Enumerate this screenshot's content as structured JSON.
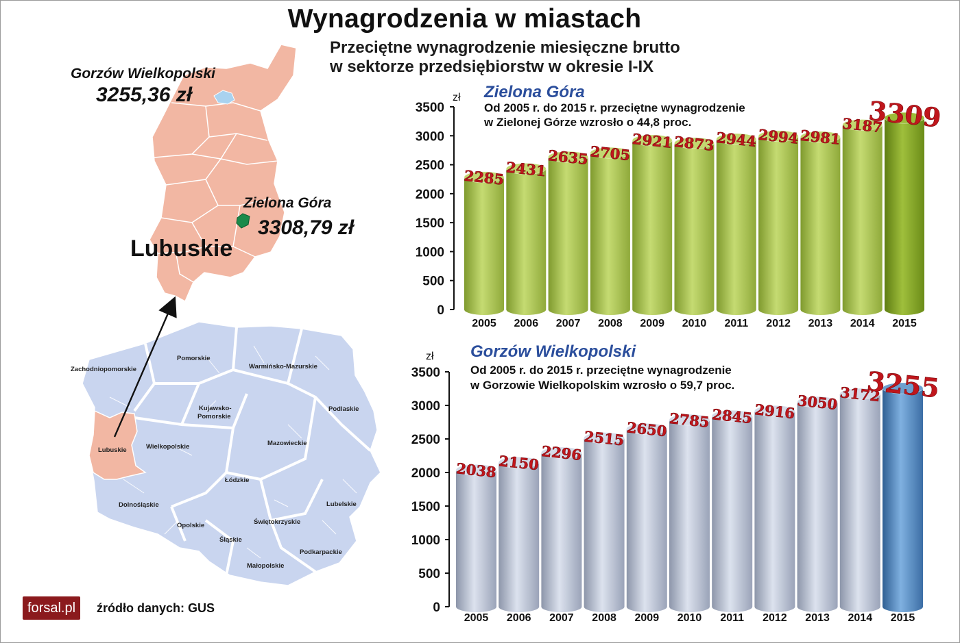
{
  "title": "Wynagrodzenia w miastach",
  "subtitle_lines": [
    "Przeciętne wynagrodzenie miesięczne brutto",
    "w sektorze przedsiębiorstw w okresie I-IX"
  ],
  "map": {
    "region_name": "Lubuskie",
    "cities": [
      {
        "name": "Gorzów Wielkopolski",
        "value": "3255,36 zł"
      },
      {
        "name": "Zielona Góra",
        "value": "3308,79 zł"
      }
    ],
    "voivodeships": [
      "Zachodniopomorskie",
      "Pomorskie",
      "Warmińsko-Mazurskie",
      "Kujawsko-",
      "Pomorskie",
      "Podlaskie",
      "Lubuskie",
      "Wielkopolskie",
      "Mazowieckie",
      "Łódzkie",
      "Dolnośląskie",
      "Lubelskie",
      "Opolskie",
      "Świętokrzyskie",
      "Śląskie",
      "Podkarpackie",
      "Małopolskie"
    ]
  },
  "logo": "forsal.pl",
  "source": "źródło danych: GUS",
  "colors": {
    "map_fill": "#f2b7a3",
    "poland_fill": "#c9d5ef",
    "green_bar": "#a6bf4b",
    "green_highlight": "#7f9e1f",
    "gray_bar": "#bcc4d6",
    "blue_highlight": "#4f86bd",
    "value_label": "#c0161c",
    "chart_title": "#2b4e9c"
  },
  "chart_data": [
    {
      "type": "bar",
      "title": "Zielona Góra",
      "ylabel": "zł",
      "annotation": [
        "Od 2005 r. do 2015 r. przeciętne wynagrodzenie",
        "w Zielonej Górze wzrosło o 44,8 proc."
      ],
      "categories": [
        "2005",
        "2006",
        "2007",
        "2008",
        "2009",
        "2010",
        "2011",
        "2012",
        "2013",
        "2014",
        "2015"
      ],
      "values": [
        2285,
        2431,
        2635,
        2705,
        2921,
        2873,
        2944,
        2994,
        2981,
        3187,
        3309
      ],
      "ylim": [
        0,
        3500
      ],
      "yticks": [
        0,
        500,
        1000,
        1500,
        2000,
        2500,
        3000,
        3500
      ],
      "highlight_index": 10,
      "style": "cylinder"
    },
    {
      "type": "bar",
      "title": "Gorzów Wielkopolski",
      "ylabel": "zł",
      "annotation": [
        "Od 2005 r. do 2015 r. przeciętne wynagrodzenie",
        "w Gorzowie Wielkopolskim wzrosło o 59,7 proc."
      ],
      "categories": [
        "2005",
        "2006",
        "2007",
        "2008",
        "2009",
        "2010",
        "2011",
        "2012",
        "2013",
        "2014",
        "2015"
      ],
      "values": [
        2038,
        2150,
        2296,
        2515,
        2650,
        2785,
        2845,
        2916,
        3050,
        3172,
        3255
      ],
      "ylim": [
        0,
        3500
      ],
      "yticks": [
        0,
        500,
        1000,
        1500,
        2000,
        2500,
        3000,
        3500
      ],
      "highlight_index": 10,
      "style": "cylinder"
    }
  ]
}
